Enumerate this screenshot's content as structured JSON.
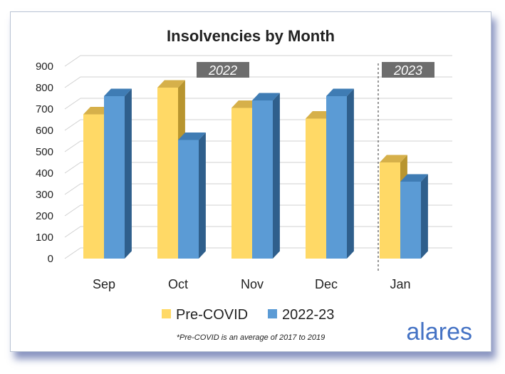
{
  "chart_data": {
    "type": "bar",
    "title": "Insolvencies by Month",
    "categories": [
      "Sep",
      "Oct",
      "Nov",
      "Dec",
      "Jan"
    ],
    "series": [
      {
        "name": "Pre-COVID",
        "values": [
          675,
          800,
          705,
          655,
          450
        ],
        "color": "#ffd966",
        "top_color": "#d6b04a",
        "side_color": "#b8952f"
      },
      {
        "name": "2022-23",
        "values": [
          760,
          555,
          740,
          760,
          360
        ],
        "color": "#5b9bd5",
        "top_color": "#3f7cb4",
        "side_color": "#2f5f8c"
      }
    ],
    "y_ticks": [
      0,
      100,
      200,
      300,
      400,
      500,
      600,
      700,
      800,
      900
    ],
    "ylim": [
      0,
      900
    ],
    "year_labels": [
      {
        "text": "2022",
        "categories": [
          "Sep",
          "Oct",
          "Nov",
          "Dec"
        ]
      },
      {
        "text": "2023",
        "categories": [
          "Jan"
        ]
      }
    ],
    "grid": true,
    "legend_position": "bottom",
    "footnote": "*Pre-COVID is an average of 2017 to 2019",
    "brand": "alares",
    "colors": {
      "grid": "#d0d0d0",
      "year_badge": "#6d6d6d",
      "year_text": "#ffffff",
      "brand": "#4472c4",
      "text": "#222222"
    }
  }
}
